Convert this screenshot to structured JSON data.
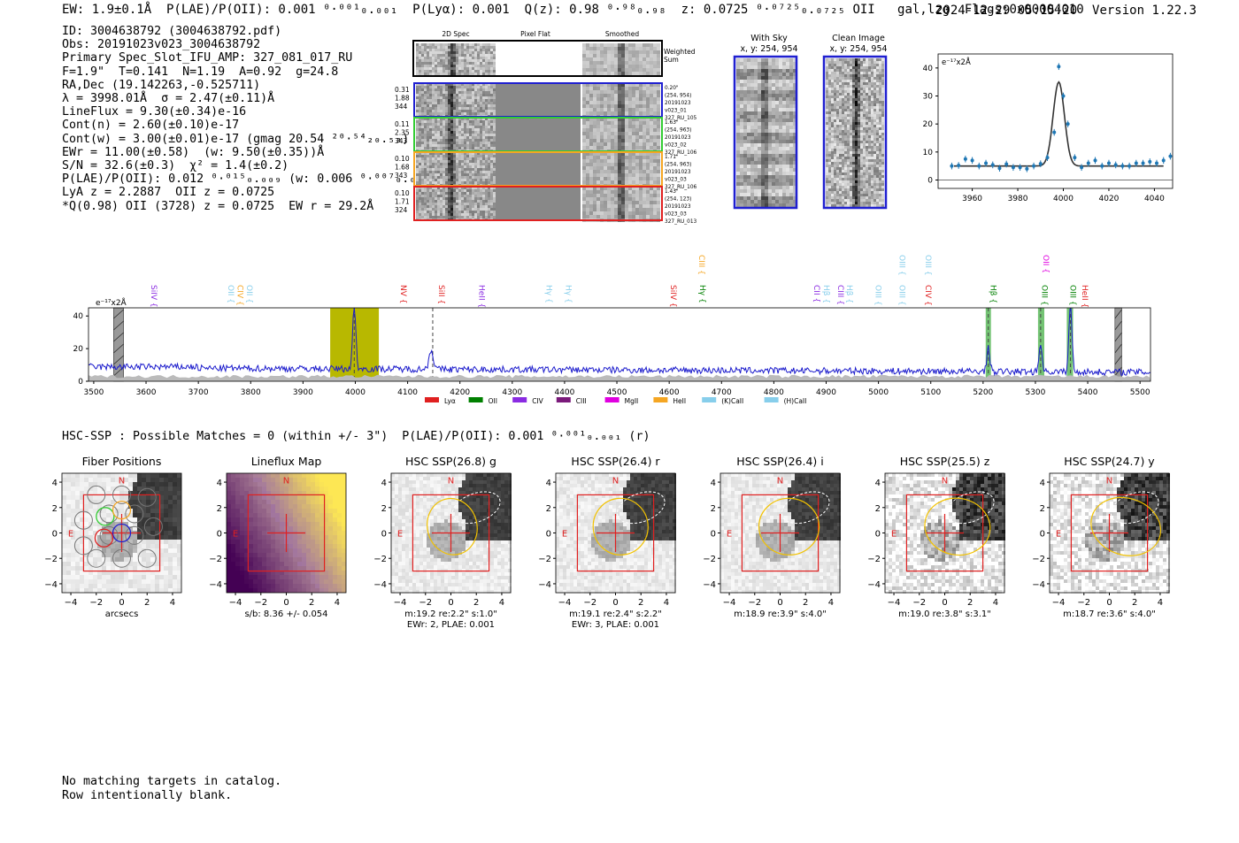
{
  "header": {
    "summary": "EW: 1.9±0.1Å  P(LAE)/P(OII): 0.001 ⁰·⁰⁰¹₀.₀₀₁  P(Lyα): 0.001  Q(z): 0.98 ⁰·⁹⁸₀.₉₈  z: 0.0725 ⁰·⁰⁷²⁵₀.₀₇₂₅ OII   gal,lzg  Flags:0x00004010",
    "timestamp": "2024-12-29 05:15:20",
    "version": "Version 1.22.3"
  },
  "info_lines": [
    "ID: 3004638792 (3004638792.pdf)",
    "Obs: 20191023v023_3004638792",
    "Primary Spec_Slot_IFU_AMP: 327_081_017_RU",
    "F=1.9\"  T=0.141  N=1.19  A=0.92  g=24.8",
    "RA,Dec (19.142263,-0.525711)",
    "λ = 3998.01Å  σ = 2.47(±0.11)Å",
    "LineFlux = 9.30(±0.34)e-16",
    "Cont(n) = 2.60(±0.10)e-17",
    "Cont(w) = 3.00(±0.01)e-17 (gmag 20.54 ²⁰·⁵⁴₂₀.₅₃)",
    "EWr = 11.00(±0.58)  (w: 9.50(±0.35))Å",
    "S/N = 32.6(±0.3)  χ² = 1.4(±0.2)",
    "P(LAE)/P(OII): 0.012 ⁰·⁰¹⁵₀.₀₀₉ (w: 0.006 ⁰·⁰⁰⁷₀.₀₀₅)",
    "LyA z = 2.2887  OII z = 0.0725",
    "*Q(0.98) OII (3728) z = 0.0725  EW r = 29.2Å"
  ],
  "cutouts": {
    "column_labels": [
      "2D Spec",
      "Pixel Flat",
      "Smoothed"
    ],
    "weighted_label": "Weighted Sum",
    "rows": [
      {
        "stats": [
          "0.31",
          "1.88",
          "344"
        ],
        "meta": [
          "0.20\"",
          "(254, 954)",
          "20191023",
          "v023_01",
          "327_RU_105"
        ],
        "color": "#1f1fd0"
      },
      {
        "stats": [
          "0.11",
          "2.35",
          "343"
        ],
        "meta": [
          "1.63\"",
          "(254, 963)",
          "20191023",
          "v023_02",
          "327_RU_106"
        ],
        "color": "#33cc33"
      },
      {
        "stats": [
          "0.10",
          "1.68",
          "343"
        ],
        "meta": [
          "1.71\"",
          "(254, 963)",
          "20191023",
          "v023_03",
          "327_RU_106"
        ],
        "color": "#f5a623"
      },
      {
        "stats": [
          "0.10",
          "1.71",
          "324"
        ],
        "meta": [
          "1.43\"",
          "(254, 123)",
          "20191023",
          "v023_03",
          "327_RU_013"
        ],
        "color": "#e02020"
      }
    ]
  },
  "sky_panels": [
    {
      "title": "With Sky",
      "coords": "x, y: 254, 954"
    },
    {
      "title": "Clean Image",
      "coords": "x, y: 254, 954"
    }
  ],
  "chart_data": [
    {
      "type": "scatter",
      "ylabel": "e⁻¹⁷x2Å",
      "xlim": [
        3945,
        4048
      ],
      "ylim": [
        -3,
        45
      ],
      "xticks": [
        3960,
        3980,
        4000,
        4020,
        4040
      ],
      "yticks": [
        0,
        10,
        20,
        30,
        40
      ],
      "points": [
        [
          3951,
          5
        ],
        [
          3954,
          5.2
        ],
        [
          3957,
          7.5
        ],
        [
          3960,
          7
        ],
        [
          3963,
          5
        ],
        [
          3966,
          6
        ],
        [
          3969,
          5.4
        ],
        [
          3972,
          4.2
        ],
        [
          3975,
          5.7
        ],
        [
          3978,
          4.5
        ],
        [
          3981,
          4.5
        ],
        [
          3984,
          4
        ],
        [
          3987,
          5
        ],
        [
          3990,
          5.8
        ],
        [
          3993,
          8
        ],
        [
          3996,
          17
        ],
        [
          3998,
          40.5
        ],
        [
          4000,
          30
        ],
        [
          4002,
          20
        ],
        [
          4005,
          8
        ],
        [
          4008,
          4.5
        ],
        [
          4011,
          6
        ],
        [
          4014,
          7
        ],
        [
          4017,
          5
        ],
        [
          4020,
          6
        ],
        [
          4023,
          5.4
        ],
        [
          4026,
          5
        ],
        [
          4029,
          5
        ],
        [
          4032,
          6
        ],
        [
          4035,
          6
        ],
        [
          4038,
          6.5
        ],
        [
          4041,
          6
        ],
        [
          4044,
          7
        ],
        [
          4047,
          8.5
        ]
      ],
      "fit": {
        "center": 3998.0,
        "sigma": 2.47,
        "amplitude": 30,
        "continuum": 5.0
      }
    },
    {
      "type": "line",
      "ylabel": "e⁻¹⁷x2Å",
      "xlim": [
        3490,
        5520
      ],
      "ylim": [
        0,
        45
      ],
      "xticks": [
        3500,
        3600,
        3700,
        3800,
        3900,
        4000,
        4100,
        4200,
        4300,
        4400,
        4500,
        4600,
        4700,
        4800,
        4900,
        5000,
        5100,
        5200,
        5300,
        5400,
        5500
      ],
      "yticks": [
        0,
        20,
        40
      ],
      "peaks": [
        {
          "x": 3998,
          "y": 38,
          "w": 3
        },
        {
          "x": 4145,
          "y": 12,
          "w": 4
        },
        {
          "x": 5210,
          "y": 14,
          "w": 3
        },
        {
          "x": 5310,
          "y": 17,
          "w": 3
        },
        {
          "x": 5367,
          "y": 40,
          "w": 3
        }
      ],
      "continuum": 8,
      "highlight_band": {
        "from": 3952,
        "to": 4045,
        "color": "#b8b800"
      },
      "green_bands": [
        [
          5205,
          5215
        ],
        [
          5305,
          5317
        ],
        [
          5360,
          5372
        ]
      ],
      "hatched_bands": [
        [
          3538,
          3557
        ],
        [
          5452,
          5465
        ]
      ],
      "dashed_lines": [
        3998,
        4148,
        5210,
        5310,
        5367
      ],
      "line_labels": [
        {
          "text": "SiIV",
          "x": 3605,
          "color": "#8a2be2"
        },
        {
          "text": "OII",
          "x": 3752,
          "color": "#87ceeb"
        },
        {
          "text": "CIV",
          "x": 3770,
          "color": "#f5a623"
        },
        {
          "text": "OII",
          "x": 3788,
          "color": "#87ceeb"
        },
        {
          "text": "NV",
          "x": 4082,
          "color": "#e02020"
        },
        {
          "text": "SiII",
          "x": 4155,
          "color": "#e02020"
        },
        {
          "text": "HeII",
          "x": 4232,
          "color": "#8a2be2"
        },
        {
          "text": "Hγ",
          "x": 4360,
          "color": "#87ceeb"
        },
        {
          "text": "Hγ",
          "x": 4398,
          "color": "#87ceeb"
        },
        {
          "text": "SiIV",
          "x": 4598,
          "color": "#e02020"
        },
        {
          "text": "Hγ",
          "x": 4654,
          "color": "#008000"
        },
        {
          "text": "CIII",
          "x": 4652,
          "color": "#f5a623",
          "top": true
        },
        {
          "text": "CII",
          "x": 4872,
          "color": "#8a2be2"
        },
        {
          "text": "Hβ",
          "x": 4891,
          "color": "#87ceeb"
        },
        {
          "text": "CIII",
          "x": 4918,
          "color": "#8a2be2"
        },
        {
          "text": "Hβ",
          "x": 4935,
          "color": "#87ceeb"
        },
        {
          "text": "OIII",
          "x": 4990,
          "color": "#87ceeb"
        },
        {
          "text": "OIII",
          "x": 5035,
          "color": "#87ceeb"
        },
        {
          "text": "OIII",
          "x": 5035,
          "color": "#87ceeb",
          "top": true
        },
        {
          "text": "CIV",
          "x": 5085,
          "color": "#e02020"
        },
        {
          "text": "OIII",
          "x": 5085,
          "color": "#87ceeb",
          "top": true
        },
        {
          "text": "Hβ",
          "x": 5210,
          "color": "#008000"
        },
        {
          "text": "OIII",
          "x": 5308,
          "color": "#008000"
        },
        {
          "text": "OII",
          "x": 5310,
          "color": "#e000e0",
          "top": true
        },
        {
          "text": "OIII",
          "x": 5362,
          "color": "#008000"
        },
        {
          "text": "HeII",
          "x": 5385,
          "color": "#e02020"
        }
      ],
      "legend": [
        {
          "label": "Lyα",
          "color": "#e02020"
        },
        {
          "label": "OII",
          "color": "#008000"
        },
        {
          "label": "CIV",
          "color": "#8a2be2"
        },
        {
          "label": "CIII",
          "color": "#7b1a7b"
        },
        {
          "label": "MgII",
          "color": "#e000e0"
        },
        {
          "label": "HeII",
          "color": "#f5a623"
        },
        {
          "label": "(K)CaII",
          "color": "#87ceeb"
        },
        {
          "label": "(H)CaII",
          "color": "#87ceeb"
        }
      ]
    }
  ],
  "hsc_line": "HSC-SSP : Possible Matches = 0 (within +/- 3\")  P(LAE)/P(OII): 0.001 ⁰·⁰⁰¹₀.₀₀₁ (r)",
  "imaging_panels": [
    {
      "title": "Fiber Positions",
      "caption1": "arcsecs",
      "caption2": "",
      "type": "fiber"
    },
    {
      "title": "Lineflux Map",
      "caption1": "s/b: 8.36 +/- 0.054",
      "caption2": "",
      "type": "flux"
    },
    {
      "title": "HSC SSP(26.8) g",
      "caption1": "m:19.2  re:2.2\"  s:1.0\"",
      "caption2": "EWr: 2, PLAE: 0.001",
      "type": "hsc"
    },
    {
      "title": "HSC SSP(26.4) r",
      "caption1": "m:19.1  re:2.4\"  s:2.2\"",
      "caption2": "EWr: 3, PLAE: 0.001",
      "type": "hsc"
    },
    {
      "title": "HSC SSP(26.4) i",
      "caption1": "m:18.9  re:3.9\"  s:4.0\"",
      "caption2": "",
      "type": "hsc"
    },
    {
      "title": "HSC SSP(25.5) z",
      "caption1": "m:19.0  re:3.8\"  s:3.1\"",
      "caption2": "",
      "type": "hsc"
    },
    {
      "title": "HSC SSP(24.7) y",
      "caption1": "m:18.7  re:3.6\"  s:4.0\"",
      "caption2": "",
      "type": "hsc"
    }
  ],
  "compass": {
    "north": "N",
    "east": "E"
  },
  "imaging_ticks": [
    "−4",
    "−2",
    "0",
    "2",
    "4"
  ],
  "footer_lines": [
    "No matching targets in catalog.",
    "Row intentionally blank."
  ],
  "colors": {
    "spectrum": "#1a1acc",
    "fit": "#333333",
    "points": "#1f77b4",
    "box": "#e02020"
  }
}
